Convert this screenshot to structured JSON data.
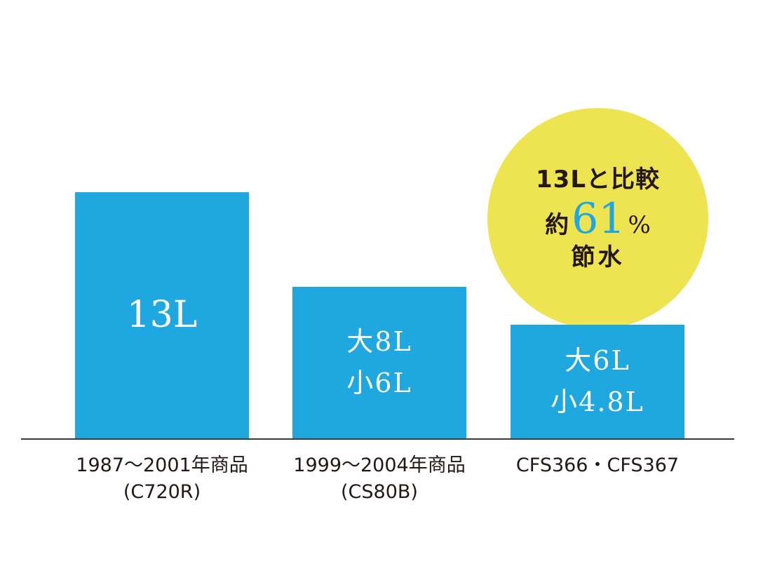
{
  "chart_data": {
    "type": "bar",
    "ylim": [
      0,
      13
    ],
    "grid": false,
    "series": [
      {
        "values": [
          13,
          8,
          6
        ]
      }
    ],
    "bar_labels": [
      [
        "13L"
      ],
      [
        "大8L",
        "小6L"
      ],
      [
        "大6L",
        "小4.8L"
      ]
    ],
    "categories": [
      [
        "1987〜2001年商品",
        "(C720R)"
      ],
      [
        "1999〜2004年商品",
        "(CS80B)"
      ],
      [
        "CFS366・CFS367"
      ]
    ],
    "annotation": {
      "line1": "13Lと比較",
      "line2_prefix": "約",
      "line2_number": "61",
      "line2_suffix": "%",
      "line3": "節水"
    }
  },
  "colors": {
    "bar": "#1fa8e0",
    "highlight_number": "#1fa8e0",
    "bubble": "#eee350",
    "text": "#231815"
  }
}
